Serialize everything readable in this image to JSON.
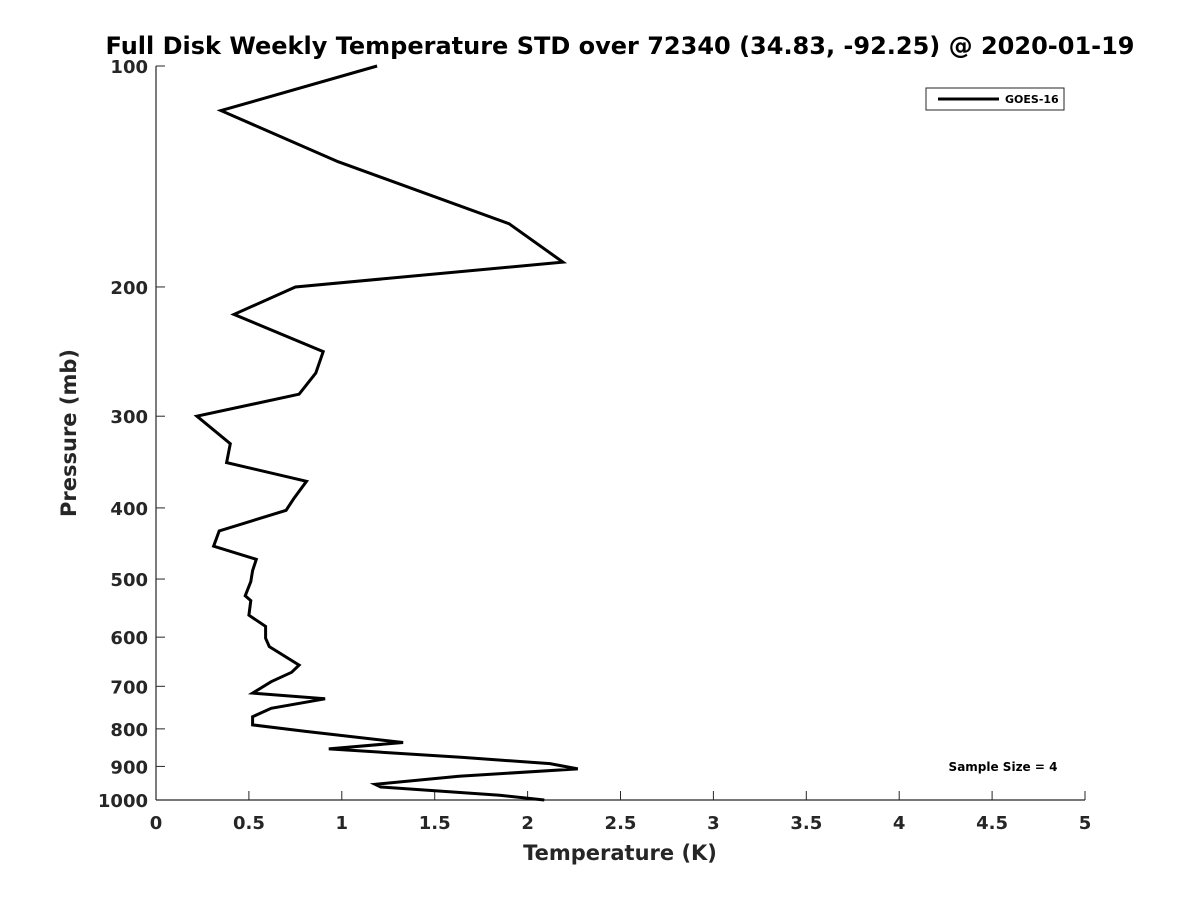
{
  "chart_data": {
    "type": "line",
    "title": "Full Disk Weekly Temperature STD over 72340 (34.83, -92.25) @ 2020-01-19",
    "xlabel": "Temperature (K)",
    "ylabel": "Pressure (mb)",
    "xlim": [
      0,
      5
    ],
    "ylim": [
      100,
      1000
    ],
    "y_scale": "log",
    "y_reversed": true,
    "x_ticks": [
      "0",
      "0.5",
      "1",
      "1.5",
      "2",
      "2.5",
      "3",
      "3.5",
      "4",
      "4.5",
      "5"
    ],
    "y_ticks": [
      "100",
      "200",
      "300",
      "400",
      "500",
      "600",
      "700",
      "800",
      "900",
      "1000"
    ],
    "grid": false,
    "legend_position": "top-right",
    "annotation": "Sample Size = 4",
    "series": [
      {
        "name": "GOES-16",
        "color": "#000000",
        "points": [
          [
            1.19,
            100
          ],
          [
            0.35,
            115
          ],
          [
            0.98,
            135
          ],
          [
            1.9,
            164
          ],
          [
            2.19,
            185
          ],
          [
            0.75,
            200
          ],
          [
            0.42,
            218
          ],
          [
            0.9,
            245
          ],
          [
            0.86,
            262
          ],
          [
            0.77,
            280
          ],
          [
            0.22,
            300
          ],
          [
            0.4,
            327
          ],
          [
            0.38,
            347
          ],
          [
            0.81,
            368
          ],
          [
            0.74,
            389
          ],
          [
            0.7,
            403
          ],
          [
            0.34,
            430
          ],
          [
            0.31,
            451
          ],
          [
            0.54,
            470
          ],
          [
            0.52,
            487
          ],
          [
            0.51,
            504
          ],
          [
            0.48,
            527
          ],
          [
            0.51,
            535
          ],
          [
            0.5,
            560
          ],
          [
            0.59,
            580
          ],
          [
            0.59,
            602
          ],
          [
            0.61,
            618
          ],
          [
            0.77,
            655
          ],
          [
            0.73,
            670
          ],
          [
            0.62,
            690
          ],
          [
            0.52,
            715
          ],
          [
            0.91,
            728
          ],
          [
            0.62,
            750
          ],
          [
            0.52,
            770
          ],
          [
            0.52,
            790
          ],
          [
            0.8,
            806
          ],
          [
            1.33,
            835
          ],
          [
            0.93,
            852
          ],
          [
            1.65,
            875
          ],
          [
            2.12,
            892
          ],
          [
            2.27,
            907
          ],
          [
            1.63,
            928
          ],
          [
            1.18,
            952
          ],
          [
            1.21,
            960
          ],
          [
            1.85,
            985
          ],
          [
            2.09,
            1000
          ]
        ]
      }
    ]
  }
}
